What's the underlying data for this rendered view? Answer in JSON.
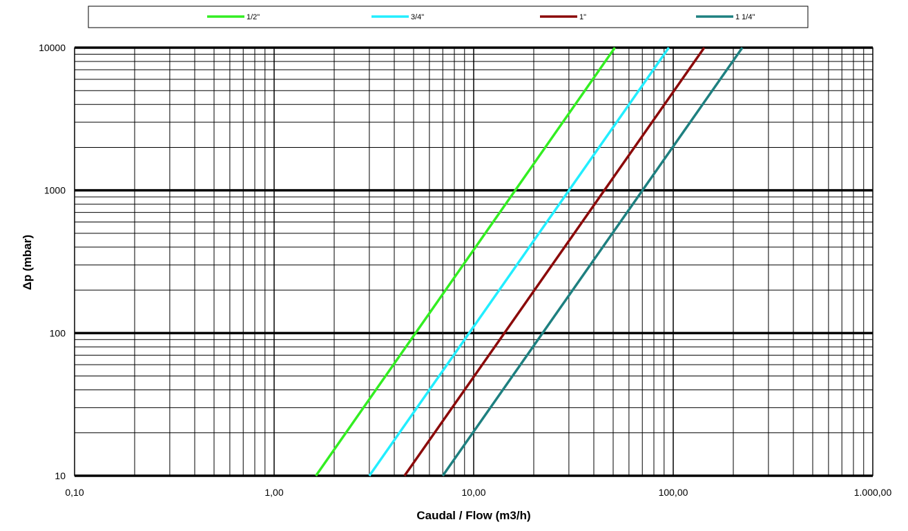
{
  "chart_data": {
    "type": "line",
    "xlabel": "Caudal  / Flow (m3/h)",
    "ylabel": "Δp (mbar)",
    "x_scale": "log",
    "y_scale": "log",
    "xlim": [
      0.1,
      1000
    ],
    "ylim": [
      10,
      10000
    ],
    "x_ticks": [
      0.1,
      1,
      10,
      100,
      1000
    ],
    "x_tick_labels": [
      "0,10",
      "1,00",
      "10,00",
      "100,00",
      "1.000,00"
    ],
    "y_ticks": [
      10,
      100,
      1000,
      10000
    ],
    "y_tick_labels": [
      "10",
      "100",
      "1000",
      "10000"
    ],
    "grid": true,
    "legend_position": "top",
    "series": [
      {
        "name": "1/2\"",
        "color": "#33ee22",
        "x": [
          1.62,
          51
        ],
        "y": [
          10,
          10000
        ]
      },
      {
        "name": "3/4\"",
        "color": "#22eeff",
        "x": [
          3.0,
          95
        ],
        "y": [
          10,
          10000
        ]
      },
      {
        "name": "1\"",
        "color": "#8b0a0a",
        "x": [
          4.5,
          143
        ],
        "y": [
          10,
          10000
        ]
      },
      {
        "name": "1 1/4\"",
        "color": "#1e8080",
        "x": [
          7.0,
          222
        ],
        "y": [
          10,
          10000
        ]
      }
    ]
  }
}
